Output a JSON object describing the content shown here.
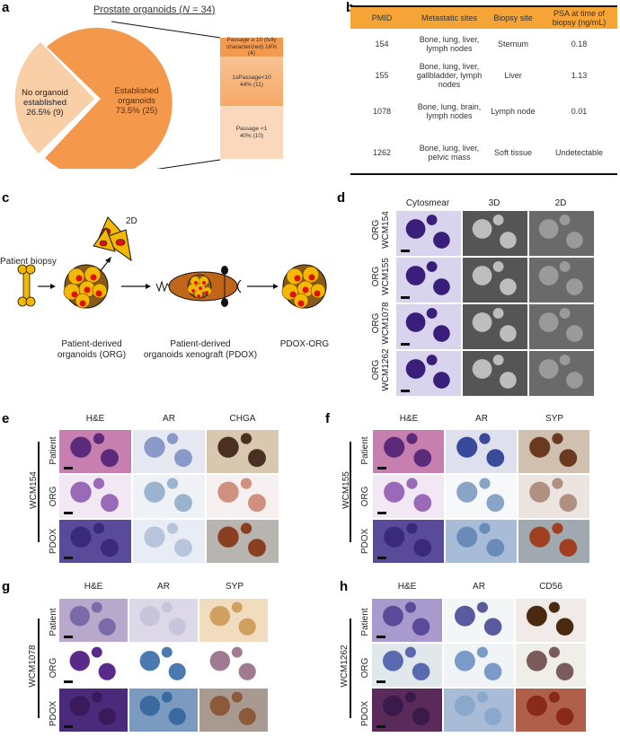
{
  "panels": {
    "a": {
      "letter": "a",
      "title": "Prostate organoids (",
      "title_n": "N",
      "title_rest": " = 34)",
      "pie": {
        "slices": [
          {
            "label_l1": "No organoid",
            "label_l2": "established",
            "label_l3": "26.5% (9)",
            "color": "#f9cfa7"
          },
          {
            "label_l1": "Established",
            "label_l2": "organoids",
            "label_l3": "73.5% (25)",
            "color": "#f4984b"
          }
        ]
      },
      "breakdown": [
        {
          "l1": "Passage ≥ 10 (fully",
          "l2": "characterized) 16%",
          "l3": "(4)",
          "color": "#f49a4e"
        },
        {
          "l1": "1≤Passage<10",
          "l2": "44% (11)",
          "l3": "",
          "color": "#f8b47d"
        },
        {
          "l1": "Passage <1",
          "l2": "40% (10)",
          "l3": "",
          "color": "#fbd8bb"
        }
      ]
    },
    "b": {
      "letter": "b",
      "headers": [
        "PMID",
        "Metastatic sites",
        "Biopsy site",
        "PSA at time of biopsy (ng/mL)"
      ],
      "header_color": "#f7a436",
      "rows": [
        {
          "pmid": "154",
          "sites": "Bone, lung, liver, lymph nodes",
          "biopsy": "Sternum",
          "psa": "0.18"
        },
        {
          "pmid": "155",
          "sites": "Bone, lung, liver, gallbladder, lymph nodes",
          "biopsy": "Liver",
          "psa": "1.13"
        },
        {
          "pmid": "1078",
          "sites": "Bone, lung, brain, lymph nodes",
          "biopsy": "Lymph node",
          "psa": "0.01"
        },
        {
          "pmid": "1262",
          "sites": "Bone, lung, liver, pelvic mass",
          "biopsy": "Soft tissue",
          "psa": "Undetectable"
        }
      ]
    },
    "c": {
      "letter": "c",
      "patient_biopsy": "Patient biopsy",
      "label_2d": "2D",
      "org_l1": "Patient-derived",
      "org_l2": "organoids (ORG)",
      "pdox_l1": "Patient-derived",
      "pdox_l2": "organoids xenograft (PDOX)",
      "pdox_org": "PDOX-ORG"
    },
    "d": {
      "letter": "d",
      "columns": [
        "Cytosmear",
        "3D",
        "2D"
      ],
      "rows": [
        {
          "l1": "ORG",
          "l2": "WCM154"
        },
        {
          "l1": "ORG",
          "l2": "WCM155"
        },
        {
          "l1": "ORG",
          "l2": "WCM1078"
        },
        {
          "l1": "ORG",
          "l2": "WCM1262"
        }
      ]
    },
    "e": {
      "letter": "e",
      "sample": "WCM154",
      "columns": [
        "H&E",
        "AR",
        "CHGA"
      ],
      "rows": [
        "Patient",
        "ORG",
        "PDOX"
      ]
    },
    "f": {
      "letter": "f",
      "sample": "WCM155",
      "columns": [
        "H&E",
        "AR",
        "SYP"
      ],
      "rows": [
        "Patient",
        "ORG",
        "PDOX"
      ]
    },
    "g": {
      "letter": "g",
      "sample": "WCM1078",
      "columns": [
        "H&E",
        "AR",
        "SYP"
      ],
      "rows": [
        "Patient",
        "ORG",
        "PDOX"
      ]
    },
    "h": {
      "letter": "h",
      "sample": "WCM1262",
      "columns": [
        "H&E",
        "AR",
        "CD56"
      ],
      "rows": [
        "Patient",
        "ORG",
        "PDOX"
      ]
    }
  }
}
